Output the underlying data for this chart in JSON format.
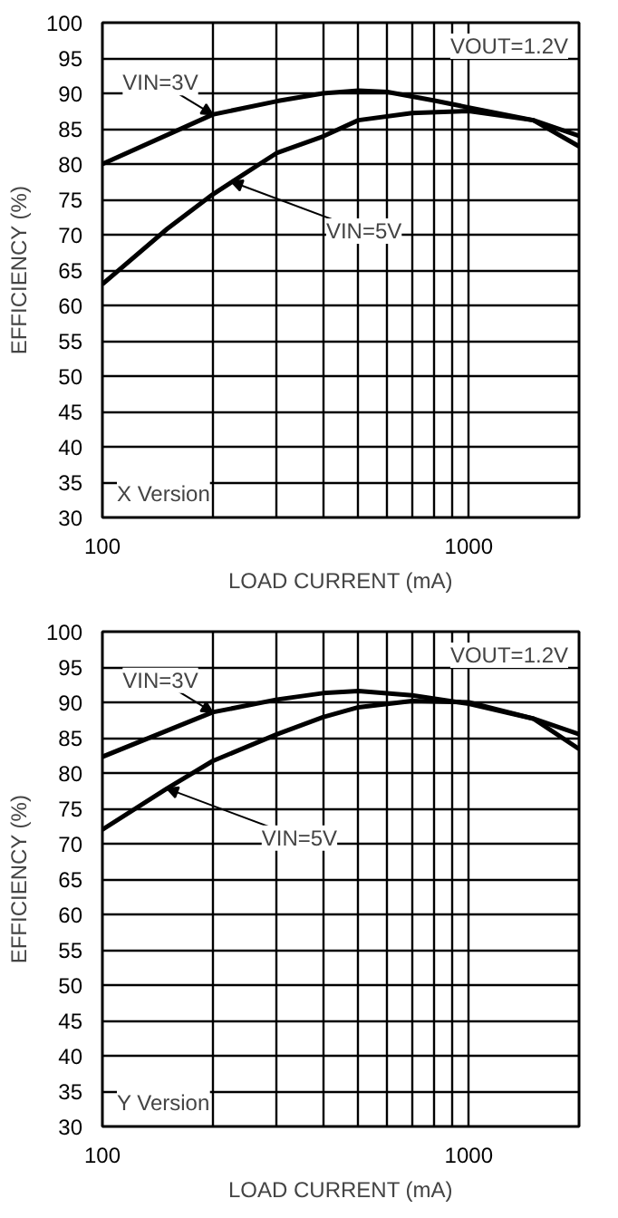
{
  "chart_data": [
    {
      "type": "line",
      "xlabel": "LOAD CURRENT (mA)",
      "ylabel": "EFFICIENCY (%)",
      "log": "x",
      "grid": true,
      "xlim": [
        100,
        2000
      ],
      "xticks": [
        100,
        {
          "value": 200,
          "label": null
        },
        {
          "value": 300,
          "label": null
        },
        {
          "value": 400,
          "label": null
        },
        {
          "value": 500,
          "label": null
        },
        {
          "value": 600,
          "label": null
        },
        {
          "value": 700,
          "label": null
        },
        {
          "value": 800,
          "label": null
        },
        {
          "value": 900,
          "label": null
        },
        1000,
        {
          "value": 2000,
          "label": null
        }
      ],
      "ylim": [
        30,
        100
      ],
      "yticks": [
        30,
        35,
        40,
        45,
        50,
        55,
        60,
        65,
        70,
        75,
        80,
        85,
        90,
        95,
        100
      ],
      "series": [
        {
          "color": "#000000",
          "x": [
            100,
            200,
            300,
            400,
            500,
            600,
            800,
            1000,
            1500,
            2000
          ],
          "values": [
            80,
            87,
            88.9,
            90,
            90.4,
            90.2,
            89,
            88,
            86.2,
            84
          ]
        },
        {
          "color": "#000000",
          "x": [
            100,
            150,
            200,
            300,
            400,
            500,
            700,
            1000,
            1500,
            2000
          ],
          "values": [
            63,
            70.8,
            75.7,
            81.6,
            83.9,
            86.2,
            87.2,
            87.5,
            86.2,
            82.5
          ]
        }
      ],
      "annotations": [
        {
          "text": "VIN=3V",
          "x": 200,
          "y": 87
        },
        {
          "text": "VIN=5V",
          "x": 225,
          "y": 77.5
        },
        "VOUT=1.2V",
        "X Version"
      ]
    },
    {
      "type": "line",
      "xlabel": "LOAD CURRENT (mA)",
      "ylabel": "EFFICIENCY (%)",
      "log": "x",
      "grid": true,
      "xlim": [
        100,
        2000
      ],
      "xticks": [
        100,
        {
          "value": 200,
          "label": null
        },
        {
          "value": 300,
          "label": null
        },
        {
          "value": 400,
          "label": null
        },
        {
          "value": 500,
          "label": null
        },
        {
          "value": 600,
          "label": null
        },
        {
          "value": 700,
          "label": null
        },
        {
          "value": 800,
          "label": null
        },
        {
          "value": 900,
          "label": null
        },
        1000,
        {
          "value": 2000,
          "label": null
        }
      ],
      "ylim": [
        30,
        100
      ],
      "yticks": [
        30,
        35,
        40,
        45,
        50,
        55,
        60,
        65,
        70,
        75,
        80,
        85,
        90,
        95,
        100
      ],
      "series": [
        {
          "color": "#000000",
          "x": [
            100,
            200,
            300,
            400,
            500,
            700,
            1000,
            1500,
            2000
          ],
          "values": [
            82.3,
            88.6,
            90.4,
            91.3,
            91.6,
            91,
            89.8,
            87.7,
            85.5
          ]
        },
        {
          "color": "#000000",
          "x": [
            100,
            150,
            200,
            300,
            400,
            500,
            700,
            1000,
            1500,
            2000
          ],
          "values": [
            72,
            77.8,
            81.7,
            85.5,
            87.9,
            89.3,
            90.2,
            90,
            87.7,
            83.4
          ]
        }
      ],
      "annotations": [
        {
          "text": "VIN=3V",
          "x": 200,
          "y": 88.6
        },
        {
          "text": "VIN=5V",
          "x": 150,
          "y": 77.8
        },
        "VOUT=1.2V",
        "Y Version"
      ]
    }
  ]
}
